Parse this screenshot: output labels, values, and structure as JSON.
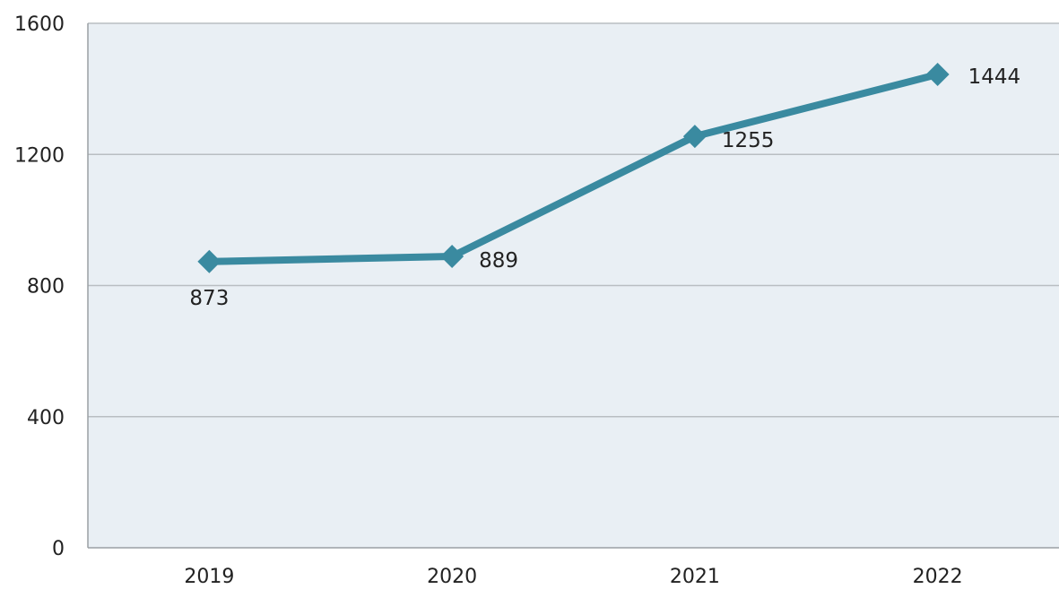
{
  "chart_data": {
    "type": "line",
    "title": "",
    "xlabel": "",
    "ylabel": "",
    "categories": [
      "2019",
      "2020",
      "2021",
      "2022"
    ],
    "series": [
      {
        "values": [
          873,
          889,
          1255,
          1444
        ],
        "color": "#3a8aa0",
        "marker": "diamond"
      }
    ],
    "data_labels": [
      "873",
      "889",
      "1255",
      "1444"
    ],
    "ylim": [
      0,
      1600
    ],
    "yticks": [
      0,
      400,
      800,
      1200,
      1600
    ],
    "ytick_labels": [
      "0",
      "400",
      "800",
      "1200",
      "1600"
    ],
    "grid": true,
    "legend": "none",
    "plot_background": "#e9eff4",
    "grid_color": "#b9bec2"
  }
}
